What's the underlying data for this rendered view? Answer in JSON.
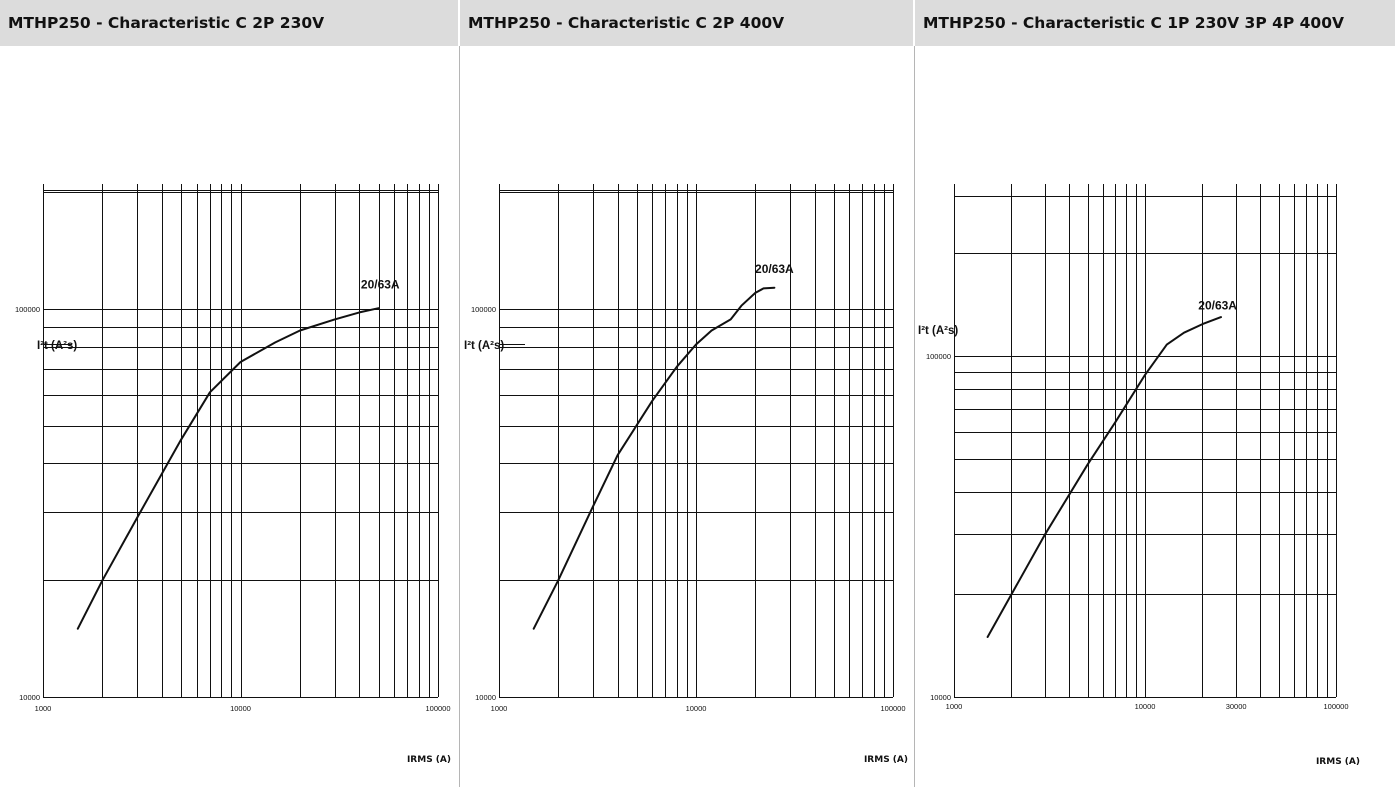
{
  "chart_data": [
    {
      "type": "line",
      "title": "MTHP250 - Characteristic C 2P 230V",
      "xlabel": "IRMS (A)",
      "ylabel": "I²t (A²s)",
      "xscale": "log",
      "yscale": "log",
      "xlim": [
        1000,
        100000
      ],
      "ylim": [
        10000,
        220000
      ],
      "x_tick_labels": [
        "1000",
        "10000",
        "100000"
      ],
      "y_tick_labels": [
        "10000",
        "100000"
      ],
      "grid": true,
      "series": [
        {
          "name": "",
          "x": [
            1500,
            2000,
            3000,
            5000,
            7000,
            10000,
            15000,
            20000,
            30000,
            40000,
            50000
          ],
          "y": [
            15000,
            20000,
            29000,
            46000,
            61000,
            73000,
            82000,
            88000,
            94000,
            98000,
            100500
          ]
        }
      ],
      "annotations": [
        {
          "text": "20/63A",
          "x": 51000,
          "y": 113000
        }
      ]
    },
    {
      "type": "line",
      "title": "MTHP250 - Characteristic C 2P 400V",
      "xlabel": "IRMS (A)",
      "ylabel": "I²t (A²s)",
      "xscale": "log",
      "yscale": "log",
      "xlim": [
        1000,
        100000
      ],
      "ylim": [
        10000,
        220000
      ],
      "x_tick_labels": [
        "1000",
        "10000",
        "100000"
      ],
      "y_tick_labels": [
        "10000",
        "100000"
      ],
      "grid": true,
      "series": [
        {
          "name": "",
          "x": [
            1500,
            2000,
            3000,
            4000,
            6000,
            8000,
            10000,
            12000,
            15000,
            17000,
            20000,
            22000,
            25000
          ],
          "y": [
            15000,
            20000,
            31000,
            42000,
            58000,
            71000,
            81000,
            88000,
            94000,
            102000,
            110000,
            113000,
            113500
          ]
        }
      ],
      "annotations": [
        {
          "text": "20/63A",
          "x": 25000,
          "y": 124000
        }
      ]
    },
    {
      "type": "line",
      "title": "MTHP250 - Characteristic C 1P 230V 3P 4P 400V",
      "xlabel": "IRMS (A)",
      "ylabel": "I²t (A²s)",
      "xscale": "log",
      "yscale": "log",
      "xlim": [
        1000,
        100000
      ],
      "ylim": [
        10000,
        220000
      ],
      "x_tick_labels": [
        "1000",
        "10000",
        "30000",
        "100000"
      ],
      "y_tick_labels": [
        "10000",
        "100000"
      ],
      "grid": true,
      "series": [
        {
          "name": "",
          "x": [
            1500,
            2000,
            3000,
            5000,
            7000,
            10000,
            13000,
            16000,
            20000,
            25000
          ],
          "y": [
            15000,
            20000,
            30000,
            48000,
            64000,
            88000,
            108000,
            117000,
            124000,
            130000
          ]
        }
      ],
      "annotations": [
        {
          "text": "20/63A",
          "x": 24000,
          "y": 137000
        }
      ]
    }
  ]
}
